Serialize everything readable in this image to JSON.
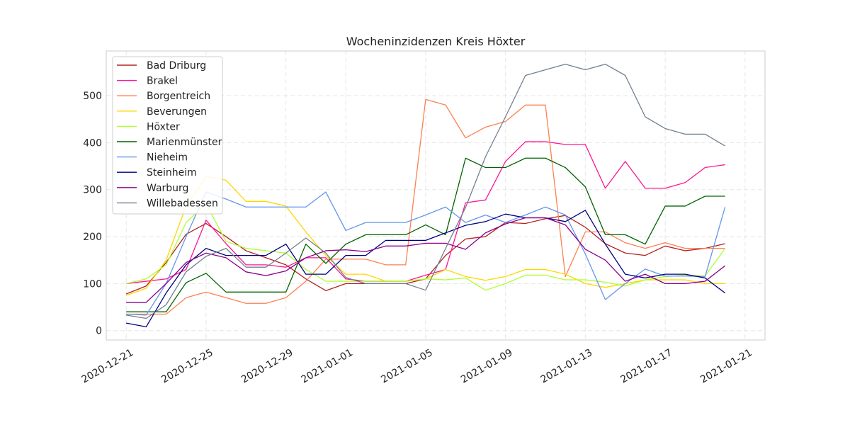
{
  "chart_data": {
    "type": "line",
    "title": "Wocheninzidenzen Kreis Höxter",
    "xlabel": "",
    "ylabel": "",
    "x_axis": {
      "start": "2020-12-21",
      "end": "2021-01-20",
      "xlim": [
        "2020-12-20",
        "2021-01-22"
      ]
    },
    "ylim": [
      -20,
      595
    ],
    "yticks": [
      0,
      100,
      200,
      300,
      400,
      500
    ],
    "xtick_labels": [
      "2020-12-21",
      "2020-12-25",
      "2020-12-29",
      "2021-01-01",
      "2021-01-05",
      "2021-01-09",
      "2021-01-13",
      "2021-01-17",
      "2021-01-21"
    ],
    "xtick_dates": [
      "2020-12-21",
      "2020-12-25",
      "2020-12-29",
      "2021-01-01",
      "2021-01-05",
      "2021-01-09",
      "2021-01-13",
      "2021-01-17",
      "2021-01-21"
    ],
    "grid": true,
    "legend_position": "top-left",
    "series": [
      {
        "name": "Bad Driburg",
        "color": "#b22222",
        "values": [
          78,
          95,
          145,
          205,
          228,
          200,
          170,
          155,
          140,
          110,
          85,
          100,
          100,
          100,
          100,
          110,
          160,
          195,
          200,
          230,
          228,
          238,
          245,
          220,
          185,
          165,
          160,
          180,
          170,
          175,
          185
        ]
      },
      {
        "name": "Brakel",
        "color": "#ff1493",
        "values": [
          100,
          105,
          110,
          130,
          235,
          185,
          140,
          140,
          135,
          155,
          155,
          110,
          105,
          105,
          105,
          118,
          130,
          272,
          278,
          360,
          402,
          402,
          396,
          396,
          303,
          360,
          303,
          303,
          315,
          347,
          353
        ]
      },
      {
        "name": "Borgentreich",
        "color": "#ff7f50",
        "values": [
          35,
          35,
          35,
          70,
          82,
          70,
          58,
          58,
          70,
          105,
          152,
          152,
          152,
          140,
          140,
          492,
          480,
          410,
          433,
          445,
          480,
          480,
          115,
          210,
          210,
          187,
          175,
          187,
          175,
          175,
          175
        ]
      },
      {
        "name": "Beverungen",
        "color": "#ffd700",
        "values": [
          75,
          90,
          150,
          265,
          328,
          320,
          275,
          275,
          265,
          210,
          160,
          120,
          120,
          105,
          105,
          110,
          130,
          115,
          107,
          115,
          130,
          130,
          120,
          100,
          92,
          100,
          108,
          108,
          108,
          100,
          100
        ]
      },
      {
        "name": "Höxter",
        "color": "#adff2f",
        "values": [
          100,
          110,
          140,
          230,
          270,
          190,
          175,
          170,
          165,
          130,
          105,
          105,
          105,
          105,
          105,
          110,
          108,
          112,
          86,
          100,
          118,
          118,
          108,
          108,
          103,
          95,
          108,
          115,
          118,
          116,
          175
        ]
      },
      {
        "name": "Marienmünster",
        "color": "#006400",
        "values": [
          40,
          40,
          40,
          102,
          122,
          82,
          82,
          82,
          82,
          184,
          143,
          184,
          204,
          204,
          204,
          225,
          204,
          367,
          347,
          347,
          367,
          367,
          347,
          306,
          204,
          204,
          184,
          265,
          265,
          286,
          286
        ]
      },
      {
        "name": "Nieheim",
        "color": "#6495ed",
        "values": [
          35,
          33,
          100,
          200,
          295,
          280,
          263,
          263,
          263,
          263,
          295,
          213,
          230,
          230,
          230,
          246,
          263,
          230,
          246,
          230,
          246,
          263,
          246,
          163,
          66,
          100,
          131,
          116,
          116,
          115,
          263
        ]
      },
      {
        "name": "Steinheim",
        "color": "#000080",
        "values": [
          16,
          8,
          80,
          140,
          175,
          160,
          160,
          160,
          184,
          120,
          120,
          160,
          160,
          192,
          192,
          192,
          208,
          224,
          232,
          248,
          240,
          240,
          232,
          256,
          184,
          120,
          112,
          120,
          120,
          112,
          80
        ]
      },
      {
        "name": "Warburg",
        "color": "#8b008b",
        "values": [
          60,
          60,
          100,
          145,
          165,
          155,
          125,
          117,
          127,
          155,
          170,
          172,
          168,
          180,
          180,
          186,
          186,
          173,
          208,
          227,
          240,
          240,
          225,
          173,
          150,
          105,
          120,
          100,
          100,
          105,
          138
        ]
      },
      {
        "name": "Willebadessen",
        "color": "#708090",
        "values": [
          33,
          26,
          55,
          125,
          158,
          175,
          135,
          135,
          165,
          197,
          165,
          113,
          100,
          100,
          100,
          86,
          175,
          262,
          370,
          455,
          543,
          555,
          567,
          555,
          567,
          543,
          455,
          430,
          418,
          418,
          393
        ]
      }
    ]
  }
}
